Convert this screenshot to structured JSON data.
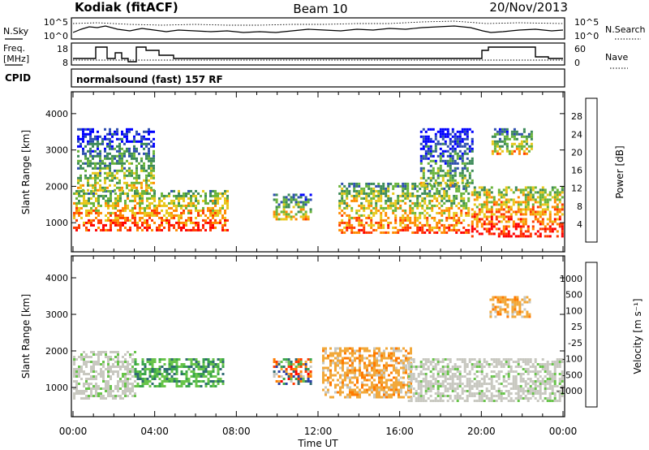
{
  "header": {
    "station": "Kodiak (fitACF)",
    "beam": "Beam 10",
    "date": "20/Nov/2013"
  },
  "noise_panel": {
    "left_label": "N.Sky",
    "right_label": "N.Search",
    "ticks_left": [
      "10^5",
      "10^0"
    ],
    "ticks_right": [
      "10^5",
      "10^0"
    ]
  },
  "freq_panel": {
    "left_label_line1": "Freq.",
    "left_label_line2": "[MHz]",
    "right_label": "Nave",
    "ticks_left": [
      "18",
      "8"
    ],
    "ticks_right": [
      "60",
      "0"
    ]
  },
  "cpid_panel": {
    "label": "CPID",
    "value": "normalsound (fast) 157 RF"
  },
  "x_axis": {
    "label": "Time UT",
    "ticks": [
      "00:00",
      "04:00",
      "08:00",
      "12:00",
      "16:00",
      "20:00",
      "00:00"
    ]
  },
  "chart_data": [
    {
      "type": "heatmap",
      "title": "Power",
      "xlabel": "Time UT",
      "ylabel": "Slant Range [km]",
      "x_ticks": [
        "00:00",
        "04:00",
        "08:00",
        "12:00",
        "16:00",
        "20:00",
        "00:00"
      ],
      "xlim_hours": [
        0,
        24
      ],
      "ylim": [
        200,
        4600
      ],
      "y_ticks": [
        1000,
        2000,
        3000,
        4000
      ],
      "colorbar": {
        "label": "Power [dB]",
        "ticks": [
          4,
          8,
          12,
          16,
          20,
          24,
          28
        ],
        "range": [
          0,
          32
        ],
        "colors": [
          "#0000ff",
          "#2f4fb0",
          "#3c8a58",
          "#69b43a",
          "#e8c71a",
          "#ff8a00",
          "#ff3a00",
          "#ff0000"
        ]
      },
      "echo_regions": [
        {
          "t0": 0.0,
          "t1": 7.6,
          "r0": 800,
          "r1": 1900,
          "level": 20
        },
        {
          "t0": 0.2,
          "t1": 4.0,
          "r0": 1900,
          "r1": 3600,
          "level": 10
        },
        {
          "t0": 9.8,
          "t1": 11.6,
          "r0": 1100,
          "r1": 1800,
          "level": 14
        },
        {
          "t0": 13.0,
          "t1": 19.4,
          "r0": 700,
          "r1": 2100,
          "level": 18
        },
        {
          "t0": 17.0,
          "t1": 19.6,
          "r0": 2000,
          "r1": 3600,
          "level": 8
        },
        {
          "t0": 19.5,
          "t1": 24.0,
          "r0": 600,
          "r1": 2000,
          "level": 22
        },
        {
          "t0": 20.5,
          "t1": 22.5,
          "r0": 2900,
          "r1": 3600,
          "level": 14
        }
      ]
    },
    {
      "type": "heatmap",
      "title": "Velocity",
      "xlabel": "Time UT",
      "ylabel": "Slant Range [km]",
      "x_ticks": [
        "00:00",
        "04:00",
        "08:00",
        "12:00",
        "16:00",
        "20:00",
        "00:00"
      ],
      "xlim_hours": [
        0,
        24
      ],
      "ylim": [
        200,
        4600
      ],
      "y_ticks": [
        1000,
        2000,
        3000,
        4000
      ],
      "colorbar": {
        "label": "Velocity [m s⁻¹]",
        "ticks": [
          "1000",
          "500",
          "100",
          "25",
          "-25",
          "-100",
          "-500",
          "-1000"
        ],
        "colors": [
          "#2a3fa8",
          "#2f6b73",
          "#3aa64a",
          "#68c44a",
          "#c8c8c0",
          "#f2a83a",
          "#ff7a00",
          "#ff3a00",
          "#ff0000"
        ]
      },
      "echo_regions": [
        {
          "t0": 0.0,
          "t1": 3.0,
          "r0": 700,
          "r1": 2000,
          "class": "ground"
        },
        {
          "t0": 3.0,
          "t1": 7.4,
          "r0": 1000,
          "r1": 1800,
          "class": "positive"
        },
        {
          "t0": 9.8,
          "t1": 11.6,
          "r0": 1100,
          "r1": 1800,
          "class": "mixed"
        },
        {
          "t0": 12.2,
          "t1": 16.6,
          "r0": 700,
          "r1": 2100,
          "class": "negative"
        },
        {
          "t0": 16.4,
          "t1": 24.0,
          "r0": 600,
          "r1": 1800,
          "class": "ground"
        },
        {
          "t0": 20.4,
          "t1": 22.4,
          "r0": 2900,
          "r1": 3500,
          "class": "negative"
        }
      ]
    }
  ]
}
